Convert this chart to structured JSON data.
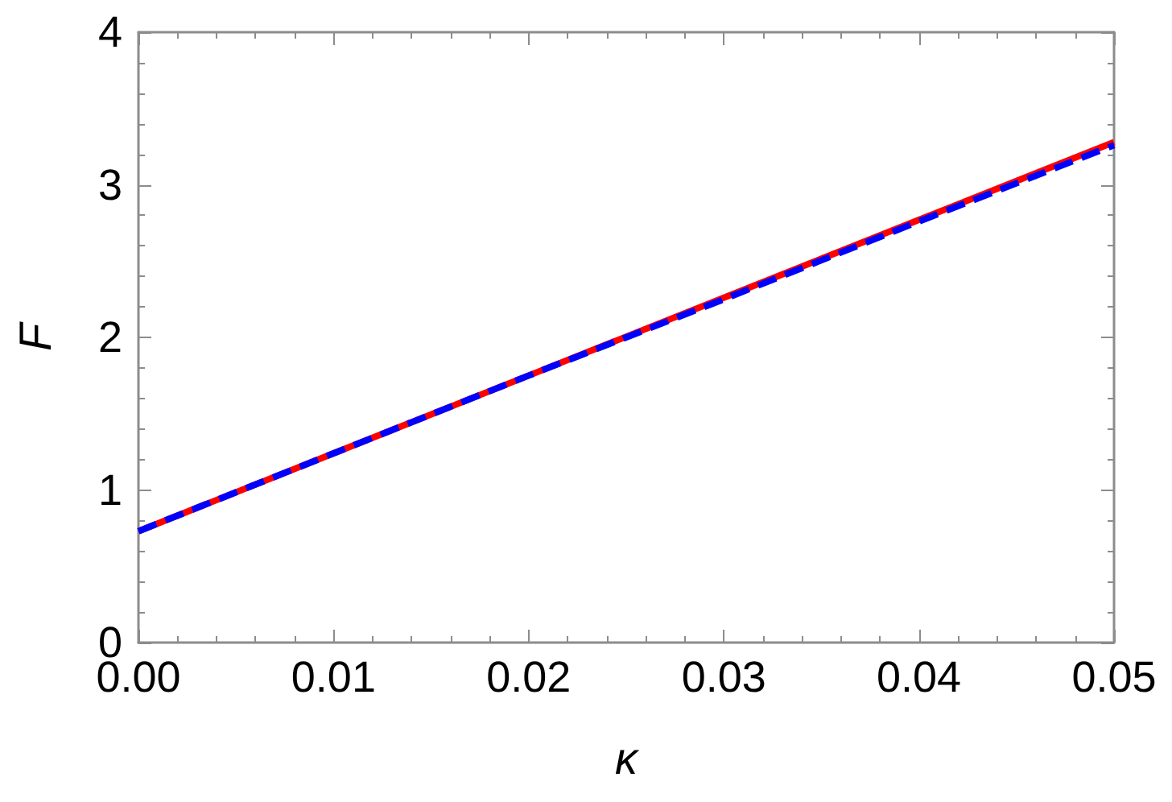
{
  "chart_data": {
    "type": "line",
    "xlabel": "κ",
    "ylabel": "F",
    "marker": "none",
    "x": [
      0,
      0.01,
      0.02,
      0.03,
      0.04,
      0.05
    ],
    "series": [
      {
        "color": "#ff0000",
        "line_style": "solid",
        "values": [
          0.73,
          1.24,
          1.75,
          2.26,
          2.77,
          3.28
        ]
      },
      {
        "color": "#0000ff",
        "line_style": "dashed",
        "values": [
          0.73,
          1.24,
          1.75,
          2.25,
          2.76,
          3.26
        ]
      }
    ],
    "xlim": [
      0,
      0.05
    ],
    "ylim": [
      0,
      4
    ],
    "xticks": [
      {
        "value": 0,
        "label": "0.00"
      },
      {
        "value": 0.002,
        "label": null
      },
      {
        "value": 0.004,
        "label": null
      },
      {
        "value": 0.006,
        "label": null
      },
      {
        "value": 0.008,
        "label": null
      },
      {
        "value": 0.01,
        "label": "0.01"
      },
      {
        "value": 0.012,
        "label": null
      },
      {
        "value": 0.014,
        "label": null
      },
      {
        "value": 0.016,
        "label": null
      },
      {
        "value": 0.018,
        "label": null
      },
      {
        "value": 0.02,
        "label": "0.02"
      },
      {
        "value": 0.022,
        "label": null
      },
      {
        "value": 0.024,
        "label": null
      },
      {
        "value": 0.026,
        "label": null
      },
      {
        "value": 0.028,
        "label": null
      },
      {
        "value": 0.03,
        "label": "0.03"
      },
      {
        "value": 0.032,
        "label": null
      },
      {
        "value": 0.034,
        "label": null
      },
      {
        "value": 0.036,
        "label": null
      },
      {
        "value": 0.038,
        "label": null
      },
      {
        "value": 0.04,
        "label": "0.04"
      },
      {
        "value": 0.042,
        "label": null
      },
      {
        "value": 0.044,
        "label": null
      },
      {
        "value": 0.046,
        "label": null
      },
      {
        "value": 0.048,
        "label": null
      },
      {
        "value": 0.05,
        "label": "0.05"
      }
    ],
    "yticks": [
      0,
      {
        "value": 0.2,
        "label": null
      },
      {
        "value": 0.4,
        "label": null
      },
      {
        "value": 0.6,
        "label": null
      },
      {
        "value": 0.8,
        "label": null
      },
      1,
      {
        "value": 1.2,
        "label": null
      },
      {
        "value": 1.4,
        "label": null
      },
      {
        "value": 1.6,
        "label": null
      },
      {
        "value": 1.8,
        "label": null
      },
      2,
      {
        "value": 2.2,
        "label": null
      },
      {
        "value": 2.4,
        "label": null
      },
      {
        "value": 2.6,
        "label": null
      },
      {
        "value": 2.8,
        "label": null
      },
      3,
      {
        "value": 3.2,
        "label": null
      },
      {
        "value": 3.4,
        "label": null
      },
      {
        "value": 3.6,
        "label": null
      },
      {
        "value": 3.8,
        "label": null
      },
      4
    ]
  }
}
